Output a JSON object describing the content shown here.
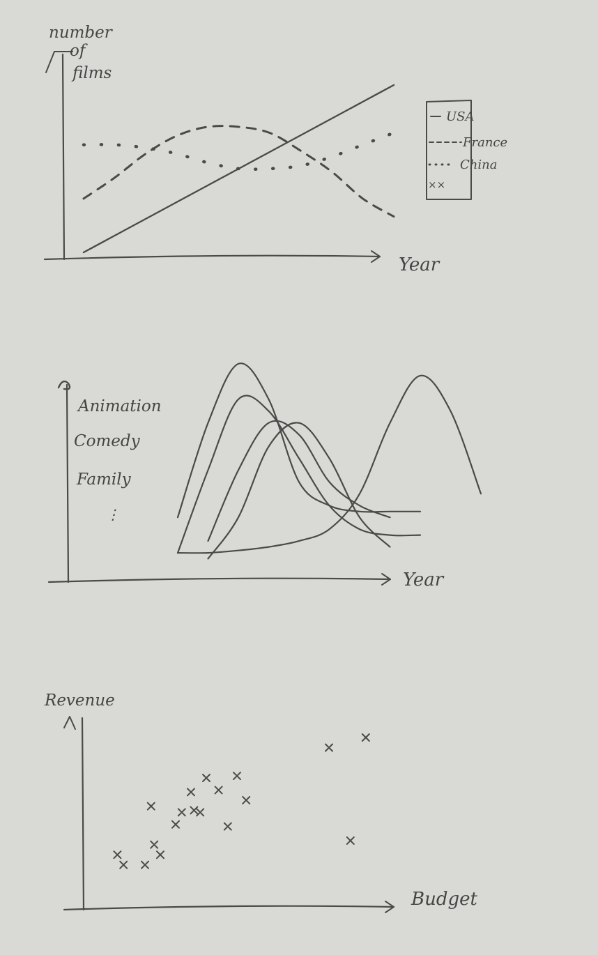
{
  "colors": {
    "paper": "#d9d9d6",
    "ink": "#4a4a48"
  },
  "chart_data": [
    {
      "type": "line",
      "ylabel": "number of films",
      "xlabel": "Year",
      "grid": false,
      "legend_position": "right",
      "legend": {
        "entries": [
          "USA",
          "France",
          "China",
          "××"
        ],
        "styles": [
          "solid",
          "dashed",
          "dotted",
          "cross"
        ]
      },
      "x": [
        0,
        1,
        2,
        3,
        4,
        5,
        6,
        7,
        8,
        9,
        10
      ],
      "series": [
        {
          "name": "USA",
          "style": "solid",
          "values": [
            0,
            2.8,
            5.6,
            8.4,
            11.2,
            14,
            16.8,
            19.6,
            22.4,
            25.2,
            28
          ]
        },
        {
          "name": "France",
          "style": "dashed",
          "values": [
            9,
            12.5,
            16.5,
            19.5,
            21,
            21,
            20,
            17,
            13.5,
            9,
            6
          ]
        },
        {
          "name": "China",
          "style": "dotted",
          "values": [
            18,
            18,
            17.5,
            16.5,
            15,
            14,
            14,
            14.5,
            16,
            18,
            20
          ]
        }
      ]
    },
    {
      "type": "line",
      "xlabel": "Year",
      "ylabel": "",
      "grid": false,
      "labels": [
        "Animation",
        "Comedy",
        "Family",
        "⋮"
      ],
      "series": [
        {
          "name": "",
          "x": [
            0,
            1,
            2,
            3,
            4,
            5,
            6,
            7,
            8
          ],
          "values": [
            4,
            12,
            17,
            14,
            7,
            5,
            4.5,
            4.5,
            4.5
          ]
        },
        {
          "name": "",
          "x": [
            1,
            2,
            3,
            4,
            5,
            6,
            7
          ],
          "values": [
            2,
            8,
            12,
            11,
            7,
            5,
            4
          ]
        },
        {
          "name": "",
          "x": [
            0,
            1,
            2,
            3,
            4,
            5,
            6,
            7,
            8,
            9,
            10
          ],
          "values": [
            1,
            1,
            1.2,
            1.5,
            2,
            3,
            6,
            12,
            16,
            13,
            6
          ]
        },
        {
          "name": "",
          "x": [
            0,
            1,
            2,
            3,
            4,
            5,
            6,
            7,
            8
          ],
          "values": [
            1,
            8,
            14,
            13,
            9,
            5,
            3,
            2.5,
            2.5
          ]
        },
        {
          "name": "",
          "x": [
            1,
            2,
            3,
            4,
            5,
            6,
            7
          ],
          "values": [
            0.5,
            4,
            10,
            12,
            9,
            4,
            1.5
          ]
        }
      ]
    },
    {
      "type": "scatter",
      "xlabel": "Budget",
      "ylabel": "Revenue",
      "grid": false,
      "points": [
        [
          1.1,
          2.2
        ],
        [
          1.3,
          1.7
        ],
        [
          2.0,
          1.7
        ],
        [
          2.3,
          2.7
        ],
        [
          2.5,
          2.2
        ],
        [
          2.2,
          4.6
        ],
        [
          3.0,
          3.7
        ],
        [
          3.2,
          4.3
        ],
        [
          3.6,
          4.4
        ],
        [
          3.8,
          4.3
        ],
        [
          3.5,
          5.3
        ],
        [
          4.0,
          6.0
        ],
        [
          4.4,
          5.4
        ],
        [
          4.7,
          3.6
        ],
        [
          5.0,
          6.1
        ],
        [
          5.3,
          4.9
        ],
        [
          8.0,
          7.5
        ],
        [
          8.7,
          2.9
        ],
        [
          9.2,
          8.0
        ]
      ]
    }
  ]
}
